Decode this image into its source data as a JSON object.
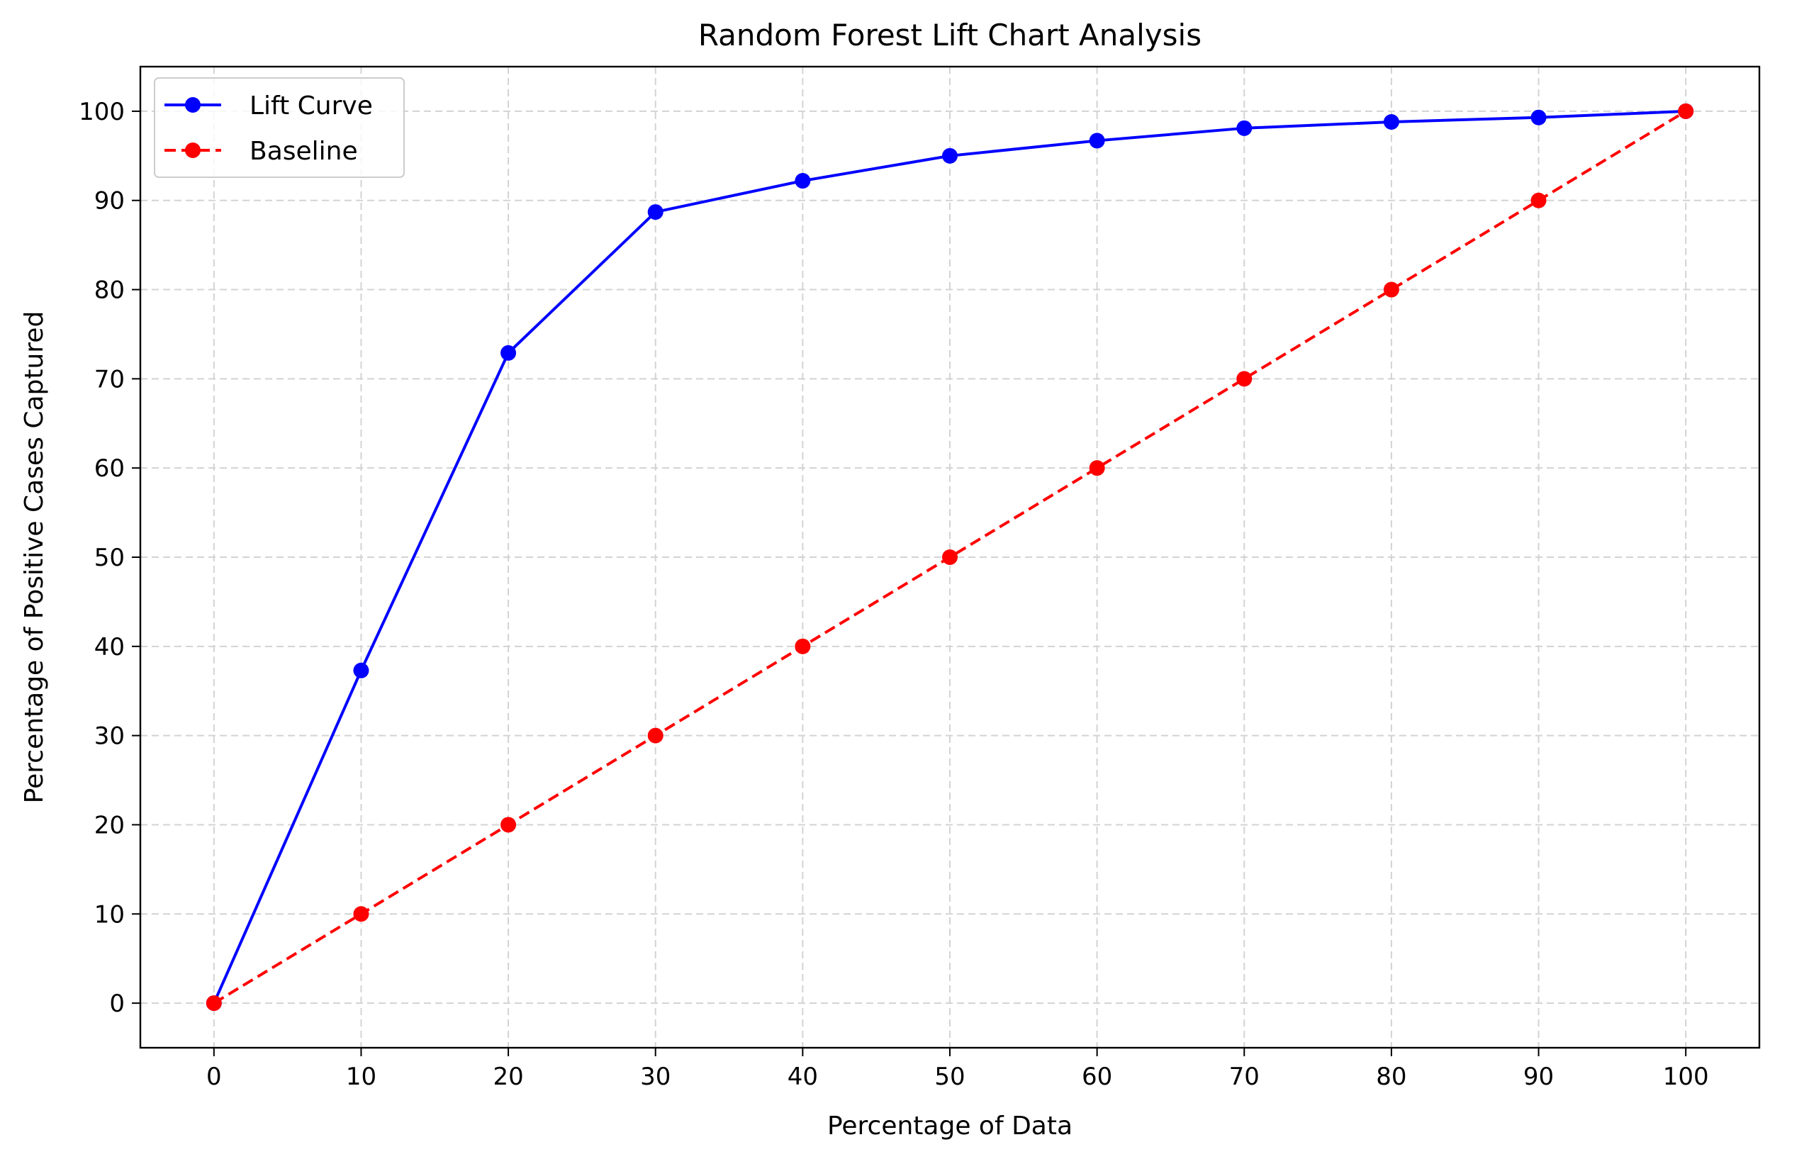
{
  "chart_data": {
    "type": "line",
    "title": "Random Forest Lift Chart Analysis",
    "xlabel": "Percentage of Data",
    "ylabel": "Percentage of Positive Cases Captured",
    "x": [
      0,
      10,
      20,
      30,
      40,
      50,
      60,
      70,
      80,
      90,
      100
    ],
    "xlim": [
      -5,
      105
    ],
    "ylim": [
      -5,
      105
    ],
    "xticks": [
      0,
      10,
      20,
      30,
      40,
      50,
      60,
      70,
      80,
      90,
      100
    ],
    "yticks": [
      0,
      10,
      20,
      30,
      40,
      50,
      60,
      70,
      80,
      90,
      100
    ],
    "grid": true,
    "legend_position": "top-left",
    "series": [
      {
        "name": "Lift Curve",
        "values": [
          0,
          37.3,
          72.9,
          88.7,
          92.2,
          95.0,
          96.7,
          98.1,
          98.8,
          99.3,
          100
        ],
        "color": "#0000ff",
        "line_style": "solid",
        "marker": "circle"
      },
      {
        "name": "Baseline",
        "values": [
          0,
          10,
          20,
          30,
          40,
          50,
          60,
          70,
          80,
          90,
          100
        ],
        "color": "#ff0000",
        "line_style": "dashed",
        "marker": "circle"
      }
    ]
  }
}
